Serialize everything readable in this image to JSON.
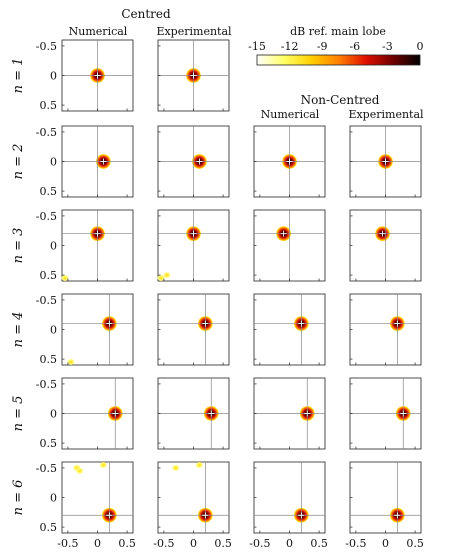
{
  "figure": {
    "group_centred": "Centred",
    "group_noncentred": "Non-Centred",
    "col_numerical": "Numerical",
    "col_experimental": "Experimental"
  },
  "colorbar": {
    "label": "dB ref. main lobe",
    "ticks": [
      "-15",
      "-12",
      "-9",
      "-6",
      "-3",
      "0"
    ],
    "stops": [
      "#ffffff",
      "#ffff66",
      "#ffd000",
      "#ff8000",
      "#e01000",
      "#700000",
      "#000000"
    ]
  },
  "axis": {
    "xticks": [
      "-0.5",
      "0",
      "0.5"
    ],
    "yticks": [
      "-0.5",
      "0",
      "0.5"
    ]
  },
  "chart_data": {
    "type": "heatmap",
    "xlim": [
      -0.6,
      0.6
    ],
    "ylim": [
      -0.6,
      0.6
    ],
    "y_inverted": true,
    "rows": [
      {
        "label": "n = 1",
        "centred": true,
        "panels": [
          {
            "source_x": 0.0,
            "source_y": 0.0,
            "peak_x": 0.0,
            "peak_y": 0.0,
            "sidelobes": []
          },
          {
            "source_x": 0.0,
            "source_y": 0.0,
            "peak_x": 0.0,
            "peak_y": 0.0,
            "sidelobes": []
          }
        ]
      },
      {
        "label": "n = 2",
        "centred": true,
        "panels": [
          {
            "source_x": 0.0,
            "source_y": 0.0,
            "peak_x": 0.1,
            "peak_y": 0.0,
            "sidelobes": []
          },
          {
            "source_x": 0.0,
            "source_y": 0.0,
            "peak_x": 0.1,
            "peak_y": 0.0,
            "sidelobes": []
          },
          {
            "source_x": 0.0,
            "source_y": 0.0,
            "peak_x": 0.0,
            "peak_y": 0.0,
            "sidelobes": []
          },
          {
            "source_x": 0.0,
            "source_y": 0.0,
            "peak_x": 0.0,
            "peak_y": 0.0,
            "sidelobes": []
          }
        ]
      },
      {
        "label": "n = 3",
        "centred": true,
        "panels": [
          {
            "source_x": 0.0,
            "source_y": -0.2,
            "peak_x": 0.0,
            "peak_y": -0.2,
            "sidelobes": [
              [
                -0.55,
                0.55
              ]
            ]
          },
          {
            "source_x": 0.0,
            "source_y": -0.2,
            "peak_x": 0.0,
            "peak_y": -0.2,
            "sidelobes": [
              [
                -0.55,
                0.55
              ],
              [
                -0.45,
                0.5
              ]
            ]
          },
          {
            "source_x": 0.0,
            "source_y": -0.2,
            "peak_x": -0.1,
            "peak_y": -0.2,
            "sidelobes": []
          },
          {
            "source_x": 0.0,
            "source_y": -0.2,
            "peak_x": -0.05,
            "peak_y": -0.2,
            "sidelobes": []
          }
        ]
      },
      {
        "label": "n = 4",
        "centred": true,
        "panels": [
          {
            "source_x": 0.2,
            "source_y": -0.1,
            "peak_x": 0.2,
            "peak_y": -0.1,
            "sidelobes": [
              [
                -0.45,
                0.55
              ]
            ]
          },
          {
            "source_x": 0.2,
            "source_y": -0.1,
            "peak_x": 0.2,
            "peak_y": -0.1,
            "sidelobes": []
          },
          {
            "source_x": 0.2,
            "source_y": -0.1,
            "peak_x": 0.2,
            "peak_y": -0.1,
            "sidelobes": []
          },
          {
            "source_x": 0.2,
            "source_y": -0.1,
            "peak_x": 0.2,
            "peak_y": -0.1,
            "sidelobes": []
          }
        ]
      },
      {
        "label": "n = 5",
        "centred": true,
        "panels": [
          {
            "source_x": 0.3,
            "source_y": 0.0,
            "peak_x": 0.3,
            "peak_y": 0.0,
            "sidelobes": []
          },
          {
            "source_x": 0.3,
            "source_y": 0.0,
            "peak_x": 0.3,
            "peak_y": 0.0,
            "sidelobes": []
          },
          {
            "source_x": 0.3,
            "source_y": 0.0,
            "peak_x": 0.3,
            "peak_y": 0.0,
            "sidelobes": []
          },
          {
            "source_x": 0.3,
            "source_y": 0.0,
            "peak_x": 0.3,
            "peak_y": 0.0,
            "sidelobes": []
          }
        ]
      },
      {
        "label": "n = 6",
        "centred": true,
        "panels": [
          {
            "source_x": 0.2,
            "source_y": 0.3,
            "peak_x": 0.2,
            "peak_y": 0.3,
            "sidelobes": [
              [
                -0.35,
                -0.5
              ],
              [
                -0.3,
                -0.45
              ],
              [
                0.1,
                -0.55
              ]
            ]
          },
          {
            "source_x": 0.2,
            "source_y": 0.3,
            "peak_x": 0.2,
            "peak_y": 0.3,
            "sidelobes": [
              [
                -0.3,
                -0.5
              ],
              [
                0.1,
                -0.55
              ]
            ]
          },
          {
            "source_x": 0.2,
            "source_y": 0.3,
            "peak_x": 0.2,
            "peak_y": 0.3,
            "sidelobes": []
          },
          {
            "source_x": 0.2,
            "source_y": 0.3,
            "peak_x": 0.2,
            "peak_y": 0.3,
            "sidelobes": []
          }
        ]
      }
    ]
  }
}
